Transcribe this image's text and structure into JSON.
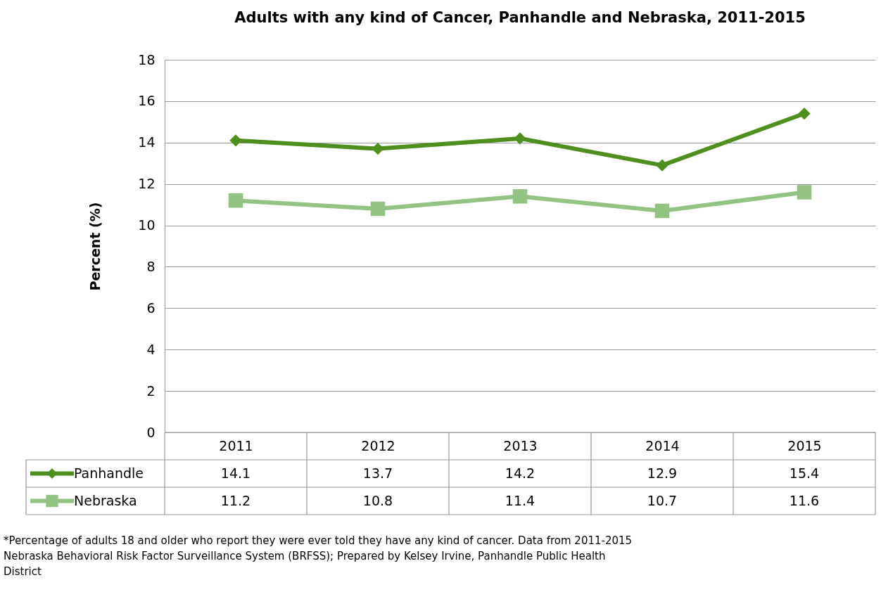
{
  "chart_data": {
    "type": "line",
    "title": "Adults with any kind of Cancer, Panhandle and Nebraska, 2011-2015",
    "ylabel": "Percent (%)",
    "categories": [
      "2011",
      "2012",
      "2013",
      "2014",
      "2015"
    ],
    "series": [
      {
        "name": "Panhandle",
        "color": "#4e8f1f",
        "values": [
          14.1,
          13.7,
          14.2,
          12.9,
          15.4
        ],
        "marker": "diamond"
      },
      {
        "name": "Nebraska",
        "color": "#93c383",
        "values": [
          11.2,
          10.8,
          11.4,
          10.7,
          11.6
        ],
        "marker": "square"
      }
    ],
    "ylim": [
      0,
      18
    ],
    "yticks": [
      0,
      2,
      4,
      6,
      8,
      10,
      12,
      14,
      16,
      18
    ],
    "grid": "y",
    "legend": "bottom",
    "data_labels": true,
    "line_style": "solid",
    "annotations": [
      "*Percentage of adults 18 and older who report they were ever told they have any kind of cancer. Data from 2011-2015 Nebraska Behavioral Risk Factor Surveillance System (BRFSS); Prepared by Kelsey Irvine, Panhandle Public Health District"
    ]
  }
}
